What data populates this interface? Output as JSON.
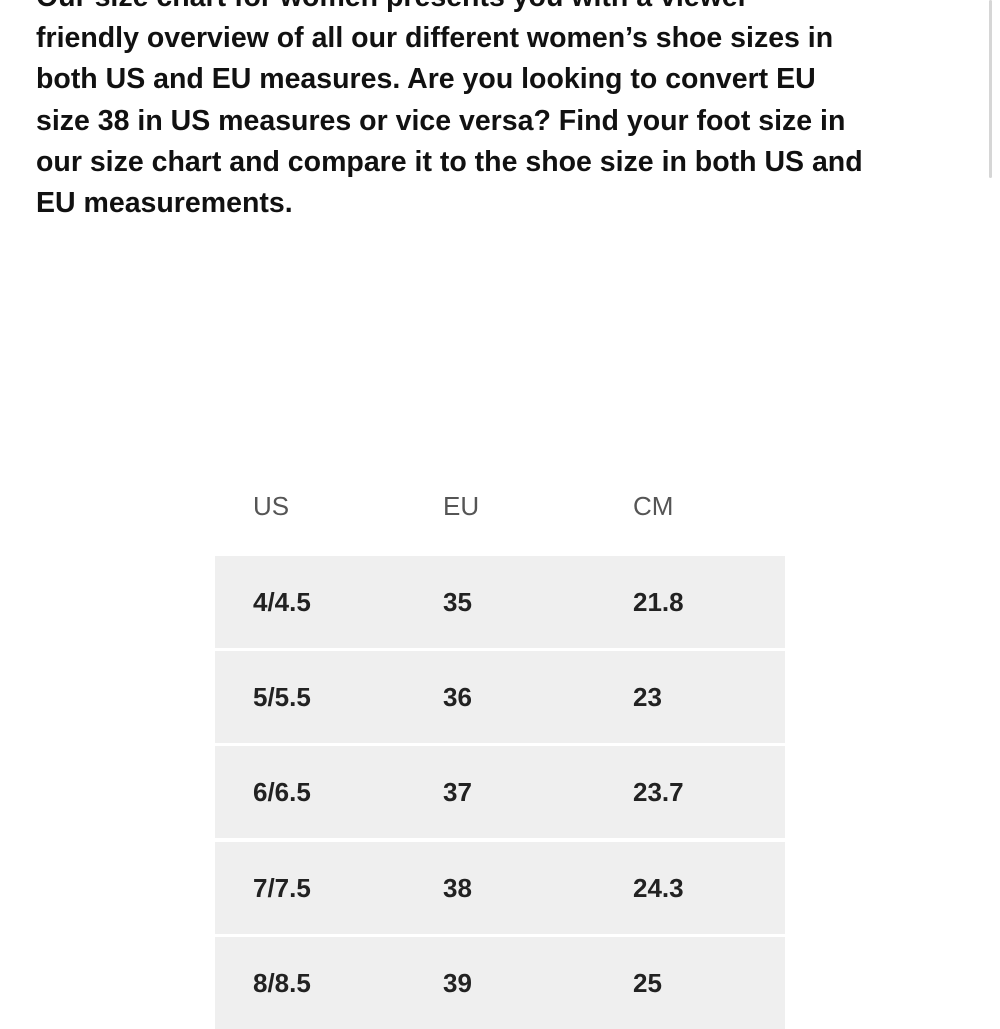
{
  "paragraph": {
    "lines": [
      "Our size chart for women presents you with a viewer-",
      "friendly overview of all our different women’s shoe sizes in",
      "both US and EU measures. Are you looking to convert EU",
      "size 38 in US measures or vice versa? Find your foot size in",
      "our size chart and compare it to the shoe size in both US and",
      "EU measurements."
    ]
  },
  "table": {
    "header": [
      "US",
      "EU",
      "CM"
    ],
    "rows": [
      [
        "4/4.5",
        "35",
        "21.8"
      ],
      [
        "5/5.5",
        "36",
        "23"
      ],
      [
        "6/6.5",
        "37",
        "23.7"
      ],
      [
        "7/7.5",
        "38",
        "24.3"
      ],
      [
        "8/8.5",
        "39",
        "25"
      ]
    ]
  }
}
